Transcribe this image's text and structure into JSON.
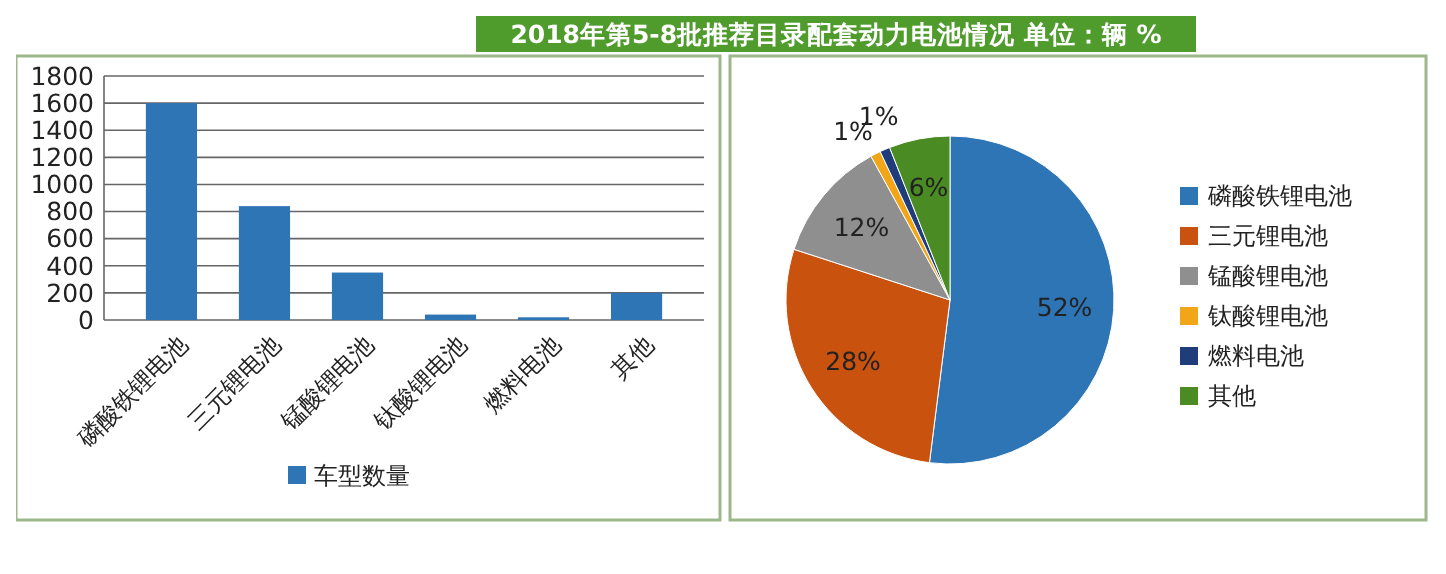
{
  "chart_data": [
    {
      "type": "bar",
      "title": "2018年第5-8批推荐目录配套动力电池情况 单位：辆 %",
      "categories": [
        "磷酸铁锂电池",
        "三元锂电池",
        "锰酸锂电池",
        "钛酸锂电池",
        "燃料电池",
        "其他"
      ],
      "series": [
        {
          "name": "车型数量",
          "color": "#2e75b6",
          "values": [
            1600,
            840,
            350,
            40,
            20,
            200
          ]
        }
      ],
      "ylim": [
        0,
        1800
      ],
      "yticks": [
        0,
        200,
        400,
        600,
        800,
        1000,
        1200,
        1400,
        1600,
        1800
      ],
      "grid": "y",
      "legend": "bottom"
    },
    {
      "type": "pie",
      "categories": [
        "磷酸铁锂电池",
        "三元锂电池",
        "锰酸锂电池",
        "钛酸锂电池",
        "燃料电池",
        "其他"
      ],
      "values": [
        52,
        28,
        12,
        1,
        1,
        6
      ],
      "colors": [
        "#2e75b6",
        "#c9520e",
        "#8f8f8f",
        "#f2a516",
        "#1f3d7a",
        "#4b8b23"
      ],
      "value_labels": [
        "52%",
        "28%",
        "12%",
        "1%",
        "1%",
        "6%"
      ],
      "legend": "right"
    }
  ]
}
